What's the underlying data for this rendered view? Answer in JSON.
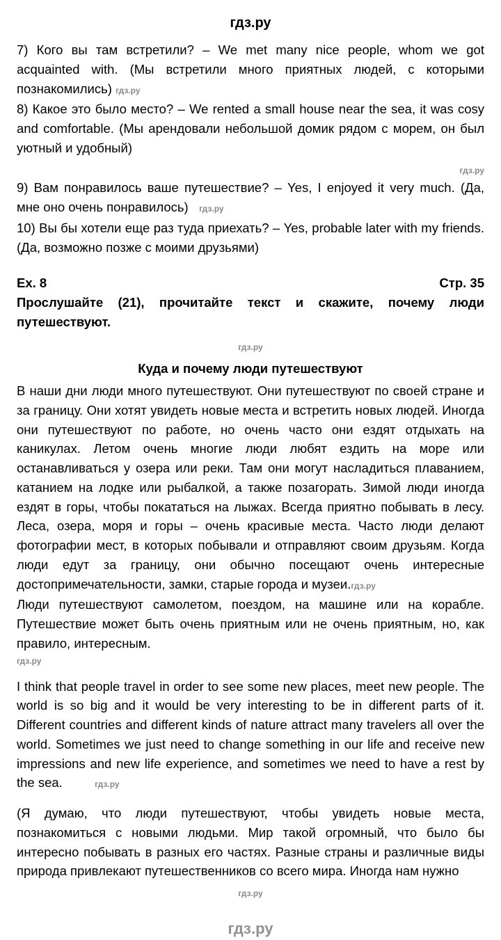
{
  "header": "гдз.ру",
  "numbered": {
    "n7": {
      "text": "7) Кого вы там встретили? – We met many nice people, whom we got acquainted with. (Мы встретили много приятных людей, с которыми познакомились)",
      "wm": "гдз.ру"
    },
    "n8": {
      "text": "8) Какое это было место? – We rented a small house near the sea, it was cosy and comfortable. (Мы арендовали небольшой домик рядом с морем, он был уютный и удобный)",
      "wm": "гдз.ру"
    },
    "n9": {
      "text": "9) Вам понравилось ваше путешествие? – Yes, I enjoyed it very much. (Да, мне оно очень понравилось)",
      "wm": "гдз.ру"
    },
    "n10": {
      "text": "10) Вы бы хотели еще раз туда приехать? – Yes, probable later with my friends. (Да, возможно позже с моими друзьями)"
    }
  },
  "exercise": {
    "left": "Ex. 8",
    "right": "Стр. 35",
    "instruction": "Прослушайте (21), прочитайте текст и скажите, почему люди путешествуют.",
    "wm_center": "гдз.ру",
    "title": "Куда и почему люди путешествуют"
  },
  "body1": {
    "p1": "В наши дни люди много путешествуют. Они путешествуют по своей стране и за границу. Они хотят увидеть новые места и встретить новых людей. Иногда они путешествуют по работе, но очень часто они ездят отдыхать на каникулах. Летом очень многие люди любят ездить на море или останавливаться у озера или реки. Там они могут насладиться плаванием, катанием на лодке или рыбалкой, а также позагорать. Зимой люди иногда ездят в горы, чтобы покататься на лыжах. Всегда приятно побывать в лесу. Леса, озера, моря и горы – очень красивые места. Часто люди делают фотографии мест, в которых побывали и отправляют своим друзьям. Когда люди едут за границу, они обычно посещают очень интересные достопримечательности, замки, старые города и музеи.",
    "wm1": "гдз.ру",
    "p2": "Люди путешествуют самолетом, поездом, на машине или на корабле. Путешествие может быть очень приятным или не очень приятным, но, как правило, интересным.",
    "wm2": "гдз.ру"
  },
  "body2": {
    "eng": "I think that people travel in order to see some new places, meet new people. The world is so big and it would be very interesting to be in different parts of it. Different countries and different kinds of nature attract many travelers all over the world. Sometimes we just need to change something in our life and receive new impressions and new life experience, and sometimes we need to have a rest by the sea.",
    "wm": "гдз.ру"
  },
  "body3": {
    "ru": "(Я думаю, что люди путешествуют, чтобы увидеть новые места, познакомиться с новыми людьми. Мир такой огромный, что было бы интересно побывать в разных его частях. Разные страны и различные виды природа привлекают путешественников со всего мира. Иногда нам нужно",
    "wm": "гдз.ру"
  },
  "footer": "гдз.ру"
}
